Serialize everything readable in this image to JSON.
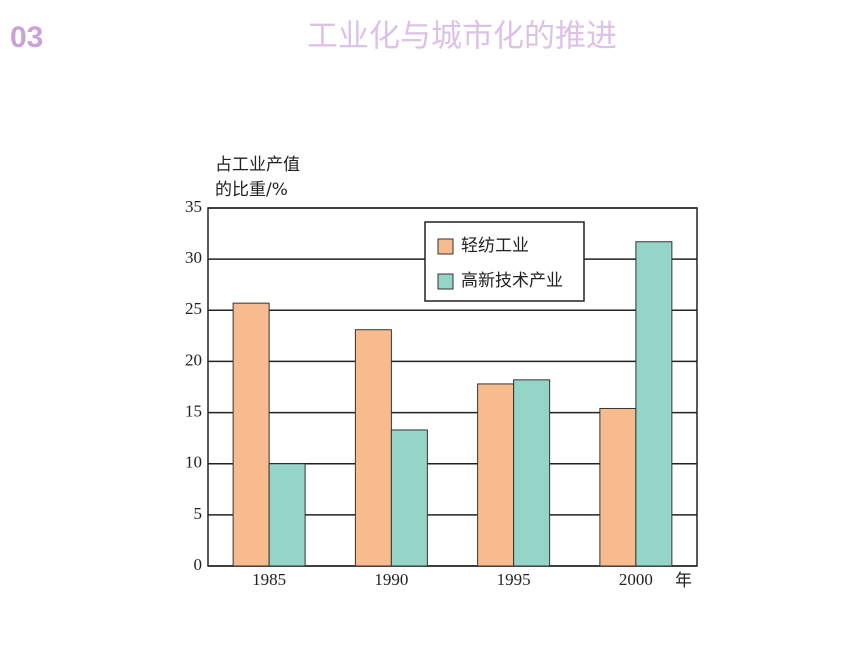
{
  "slide_number": "03",
  "title": "工业化与城市化的推进",
  "chart_data": {
    "type": "bar",
    "ylabel": [
      "占工业产值",
      "的比重/%"
    ],
    "xlabel": "年",
    "categories": [
      "1985",
      "1990",
      "1995",
      "2000"
    ],
    "series": [
      {
        "name": "轻纺工业",
        "color": "#f8bb8e",
        "values": [
          25.7,
          23.1,
          17.8,
          15.4
        ]
      },
      {
        "name": "高新技术产业",
        "color": "#94d5c8",
        "values": [
          10,
          13.3,
          18.2,
          31.7
        ]
      }
    ],
    "ylim": [
      0,
      35
    ],
    "yticks": [
      0,
      5,
      10,
      15,
      20,
      25,
      30,
      35
    ],
    "grid": true
  }
}
